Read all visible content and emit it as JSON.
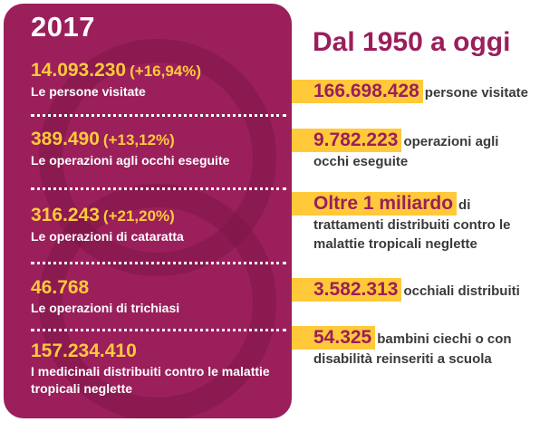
{
  "left": {
    "year": "2017",
    "stats": [
      {
        "value": "14.093.230",
        "change": "(+16,94%)",
        "label": "Le persone visitate"
      },
      {
        "value": "389.490",
        "change": "(+13,12%)",
        "label": "Le operazioni agli occhi eseguite"
      },
      {
        "value": "316.243",
        "change": "(+21,20%)",
        "label": "Le operazioni di cataratta"
      },
      {
        "value": "46.768",
        "change": "",
        "label": "Le operazioni di trichiasi"
      },
      {
        "value": "157.234.410",
        "change": "",
        "label": "I medicinali distribuiti contro le malattie tropicali neglette"
      }
    ]
  },
  "right": {
    "title": "Dal 1950 a oggi",
    "items": [
      {
        "value": "166.698.428",
        "text_first": "persone visitate",
        "text_rest": ""
      },
      {
        "value": "9.782.223",
        "text_first": "operazioni agli",
        "text_rest": "occhi eseguite"
      },
      {
        "value": "Oltre 1 miliardo",
        "text_first": "di",
        "text_rest": "trattamenti distribuiti contro le malattie tropicali neglette"
      },
      {
        "value": "3.582.313",
        "text_first": "occhiali distribuiti",
        "text_rest": ""
      },
      {
        "value": "54.325",
        "text_first": "bambini ciechi o con",
        "text_rest": "disabilità reinseriti a scuola"
      }
    ]
  },
  "colors": {
    "panel": "#9a1f5b",
    "accent": "#ffc93a",
    "text_dark": "#3a3a3a",
    "white": "#ffffff"
  }
}
